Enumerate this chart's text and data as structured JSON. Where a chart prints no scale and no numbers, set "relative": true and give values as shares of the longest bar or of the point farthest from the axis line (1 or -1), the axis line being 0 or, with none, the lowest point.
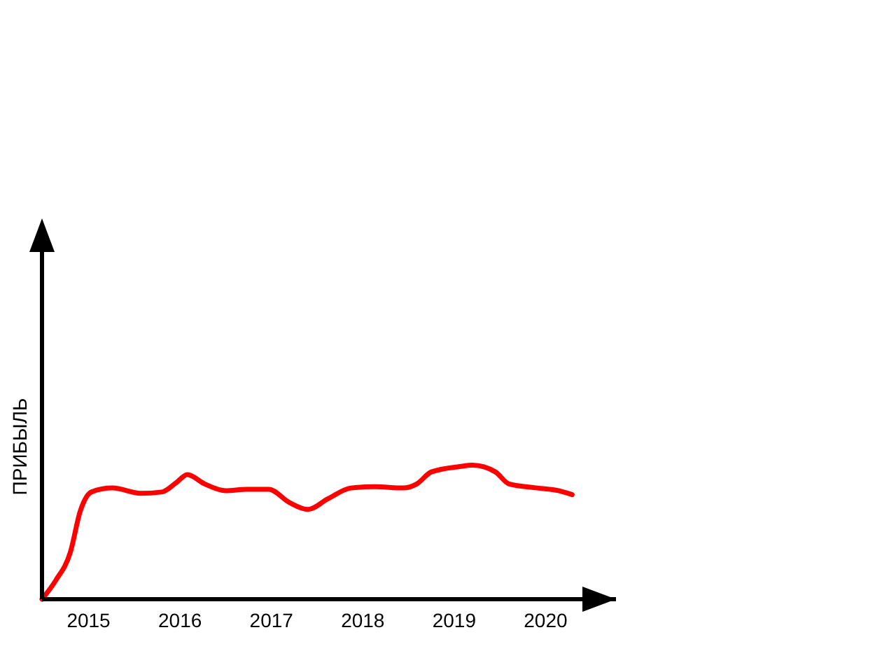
{
  "chart_data": {
    "type": "line",
    "ylabel": "ПРИБЫЛЬ",
    "relative": true,
    "xlim": [
      2014.49,
      2020.77
    ],
    "xticks": [
      2015,
      2016,
      2017,
      2018,
      2019,
      2020
    ],
    "series": [
      {
        "color": "#ff0000",
        "x": [
          2014.49,
          2014.64,
          2014.8,
          2014.91,
          2015.03,
          2015.26,
          2015.57,
          2015.8,
          2015.96,
          2016.08,
          2016.27,
          2016.5,
          2016.73,
          2016.97,
          2017.2,
          2017.4,
          2017.62,
          2017.87,
          2018.13,
          2018.44,
          2018.59,
          2018.75,
          2019.06,
          2019.2,
          2019.45,
          2019.6,
          2019.91,
          2020.14,
          2020.29
        ],
        "values": [
          0,
          0.14,
          0.35,
          0.66,
          0.8,
          0.83,
          0.79,
          0.8,
          0.87,
          0.93,
          0.86,
          0.81,
          0.82,
          0.82,
          0.72,
          0.67,
          0.75,
          0.83,
          0.84,
          0.83,
          0.86,
          0.95,
          0.99,
          1,
          0.95,
          0.86,
          0.83,
          0.81,
          0.78
        ]
      }
    ]
  }
}
